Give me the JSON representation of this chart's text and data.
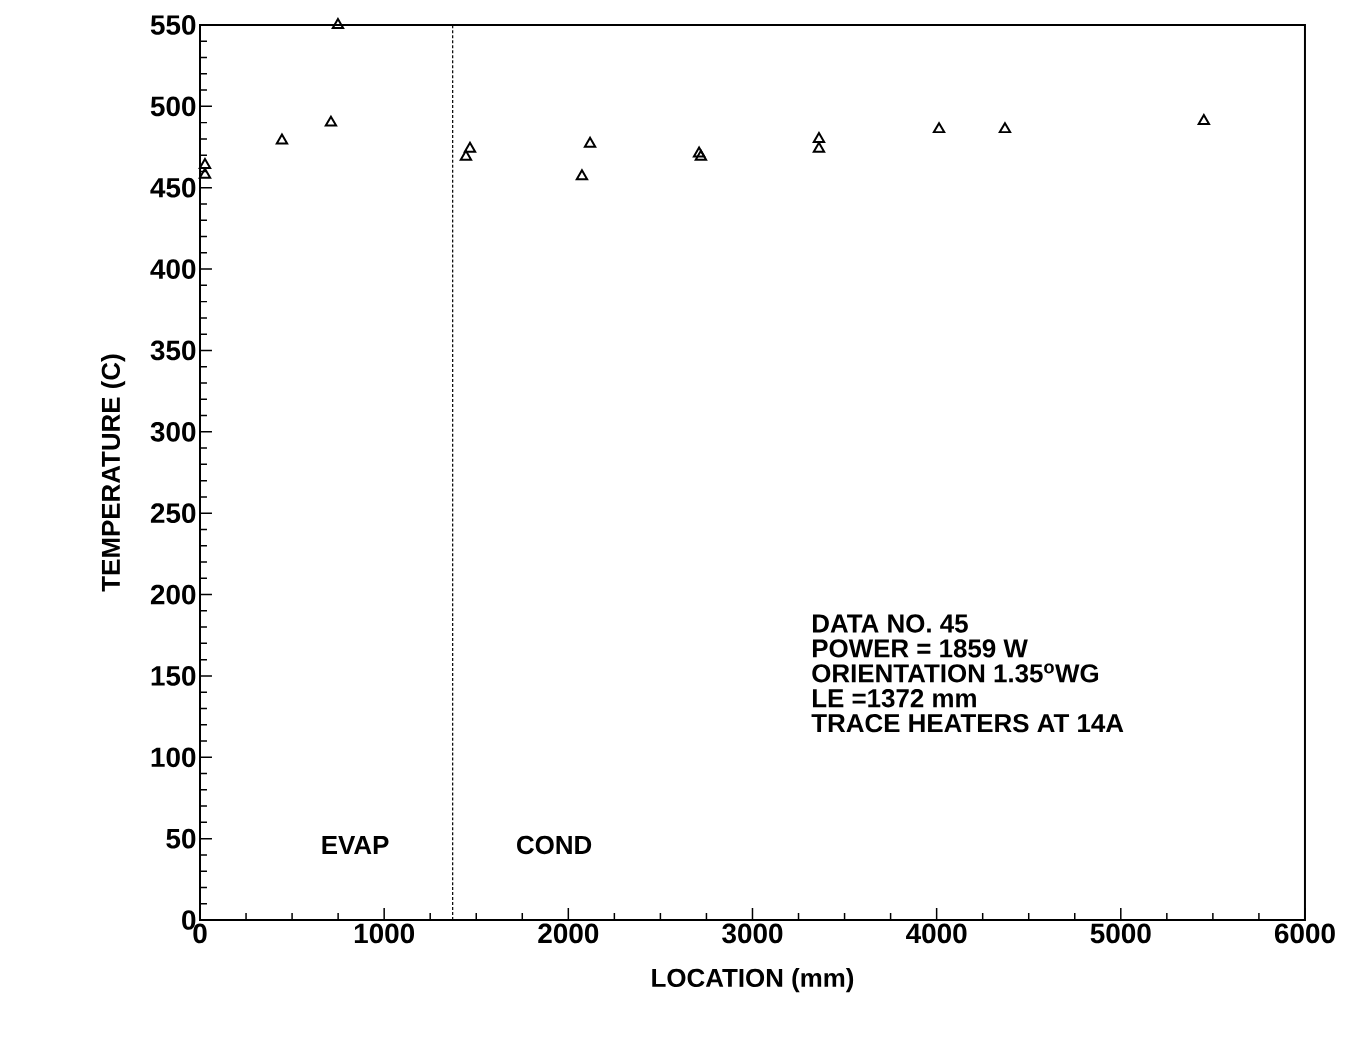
{
  "chart_data": {
    "type": "scatter",
    "xlabel": "LOCATION (mm)",
    "ylabel": "TEMPERATURE (C)",
    "x": [
      27,
      27,
      445,
      711,
      749,
      1444,
      1466,
      2074,
      2118,
      2710,
      2720,
      3361,
      3361,
      4013,
      4371,
      5451
    ],
    "values": [
      464,
      458,
      479,
      490,
      550,
      469,
      474,
      457,
      477,
      471,
      469,
      480,
      474,
      486,
      486,
      491
    ],
    "color": "#000000",
    "marker": "triangle",
    "xlim": [
      0,
      6000
    ],
    "xticks": [
      0,
      1000,
      2000,
      3000,
      4000,
      5000,
      6000
    ],
    "ylim": [
      0,
      550
    ],
    "yticks": [
      0,
      50,
      100,
      150,
      200,
      250,
      300,
      350,
      400,
      450,
      500,
      550
    ],
    "grid": false,
    "ref_lines": [
      {
        "axis": "x",
        "value": 1372,
        "line_style": "dotted",
        "color": "#000000"
      }
    ],
    "annotations": [
      "EVAP",
      "COND",
      "DATA NO. 45",
      "POWER = 1859  W",
      "ORIENTATION 1.35$^{o}$WG",
      "LE =1372 mm",
      "TRACE HEATERS AT 14A"
    ]
  }
}
